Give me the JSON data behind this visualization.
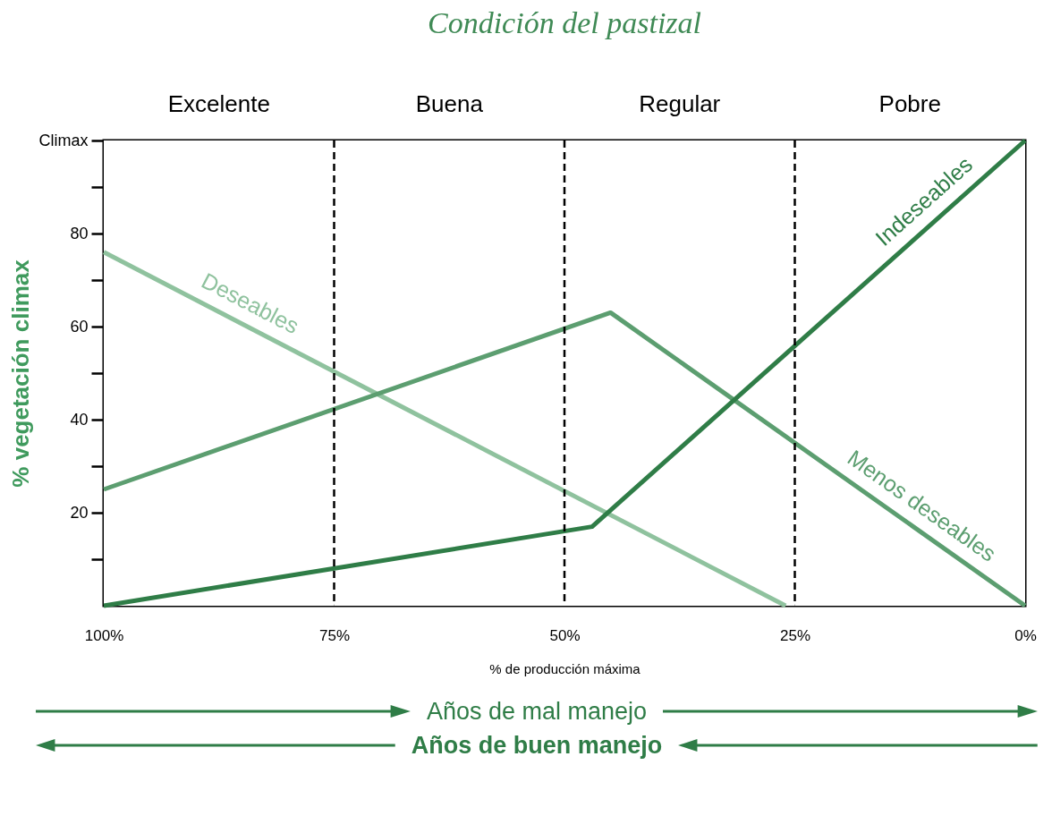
{
  "chart_data": {
    "type": "line",
    "title": "Condición del pastizal",
    "xlabel": "% de producción máxima",
    "ylabel": "% vegetación climax",
    "xlim": [
      100,
      0
    ],
    "xticks": [
      {
        "value": 100,
        "label": "100%"
      },
      {
        "value": 75,
        "label": "75%"
      },
      {
        "value": 50,
        "label": "50%"
      },
      {
        "value": 25,
        "label": "25%"
      },
      {
        "value": 0,
        "label": "0%"
      }
    ],
    "ylim": [
      0,
      100
    ],
    "yticks": [
      {
        "value": 10,
        "label": null
      },
      {
        "value": 20,
        "label": "20"
      },
      {
        "value": 30,
        "label": null
      },
      {
        "value": 40,
        "label": "40"
      },
      {
        "value": 50,
        "label": null
      },
      {
        "value": 60,
        "label": "60"
      },
      {
        "value": 70,
        "label": null
      },
      {
        "value": 80,
        "label": "80"
      },
      {
        "value": 90,
        "label": null
      },
      {
        "value": 100,
        "label": "Climax"
      }
    ],
    "grid": false,
    "legend": false,
    "marker": "none",
    "line_style": "solid",
    "series": [
      {
        "name": "Deseables",
        "color": "#8fc29e",
        "x": [
          100,
          26
        ],
        "values": [
          76,
          0
        ]
      },
      {
        "name": "Menos deseables",
        "color": "#5c9e70",
        "x": [
          100,
          45,
          0
        ],
        "values": [
          25,
          63,
          0
        ]
      },
      {
        "name": "Indeseables",
        "color": "#2f7d47",
        "x": [
          100,
          47,
          0
        ],
        "values": [
          0,
          17,
          100
        ]
      }
    ],
    "ref_lines": [
      {
        "axis": "x",
        "value": 75,
        "line_style": "dashed",
        "color": "#000000"
      },
      {
        "axis": "x",
        "value": 50,
        "line_style": "dashed",
        "color": "#000000"
      },
      {
        "axis": "x",
        "value": 25,
        "line_style": "dashed",
        "color": "#000000"
      }
    ],
    "bands": [
      {
        "axis": "x",
        "from": 100,
        "to": 75,
        "label": "Excelente",
        "color": "#ffffff"
      },
      {
        "axis": "x",
        "from": 75,
        "to": 50,
        "label": "Buena",
        "color": "#ffffff"
      },
      {
        "axis": "x",
        "from": 50,
        "to": 25,
        "label": "Regular",
        "color": "#ffffff"
      },
      {
        "axis": "x",
        "from": 25,
        "to": 0,
        "label": "Pobre",
        "color": "#ffffff"
      }
    ],
    "annotations": [
      "Años de mal manejo",
      "Años de buen manejo"
    ]
  }
}
